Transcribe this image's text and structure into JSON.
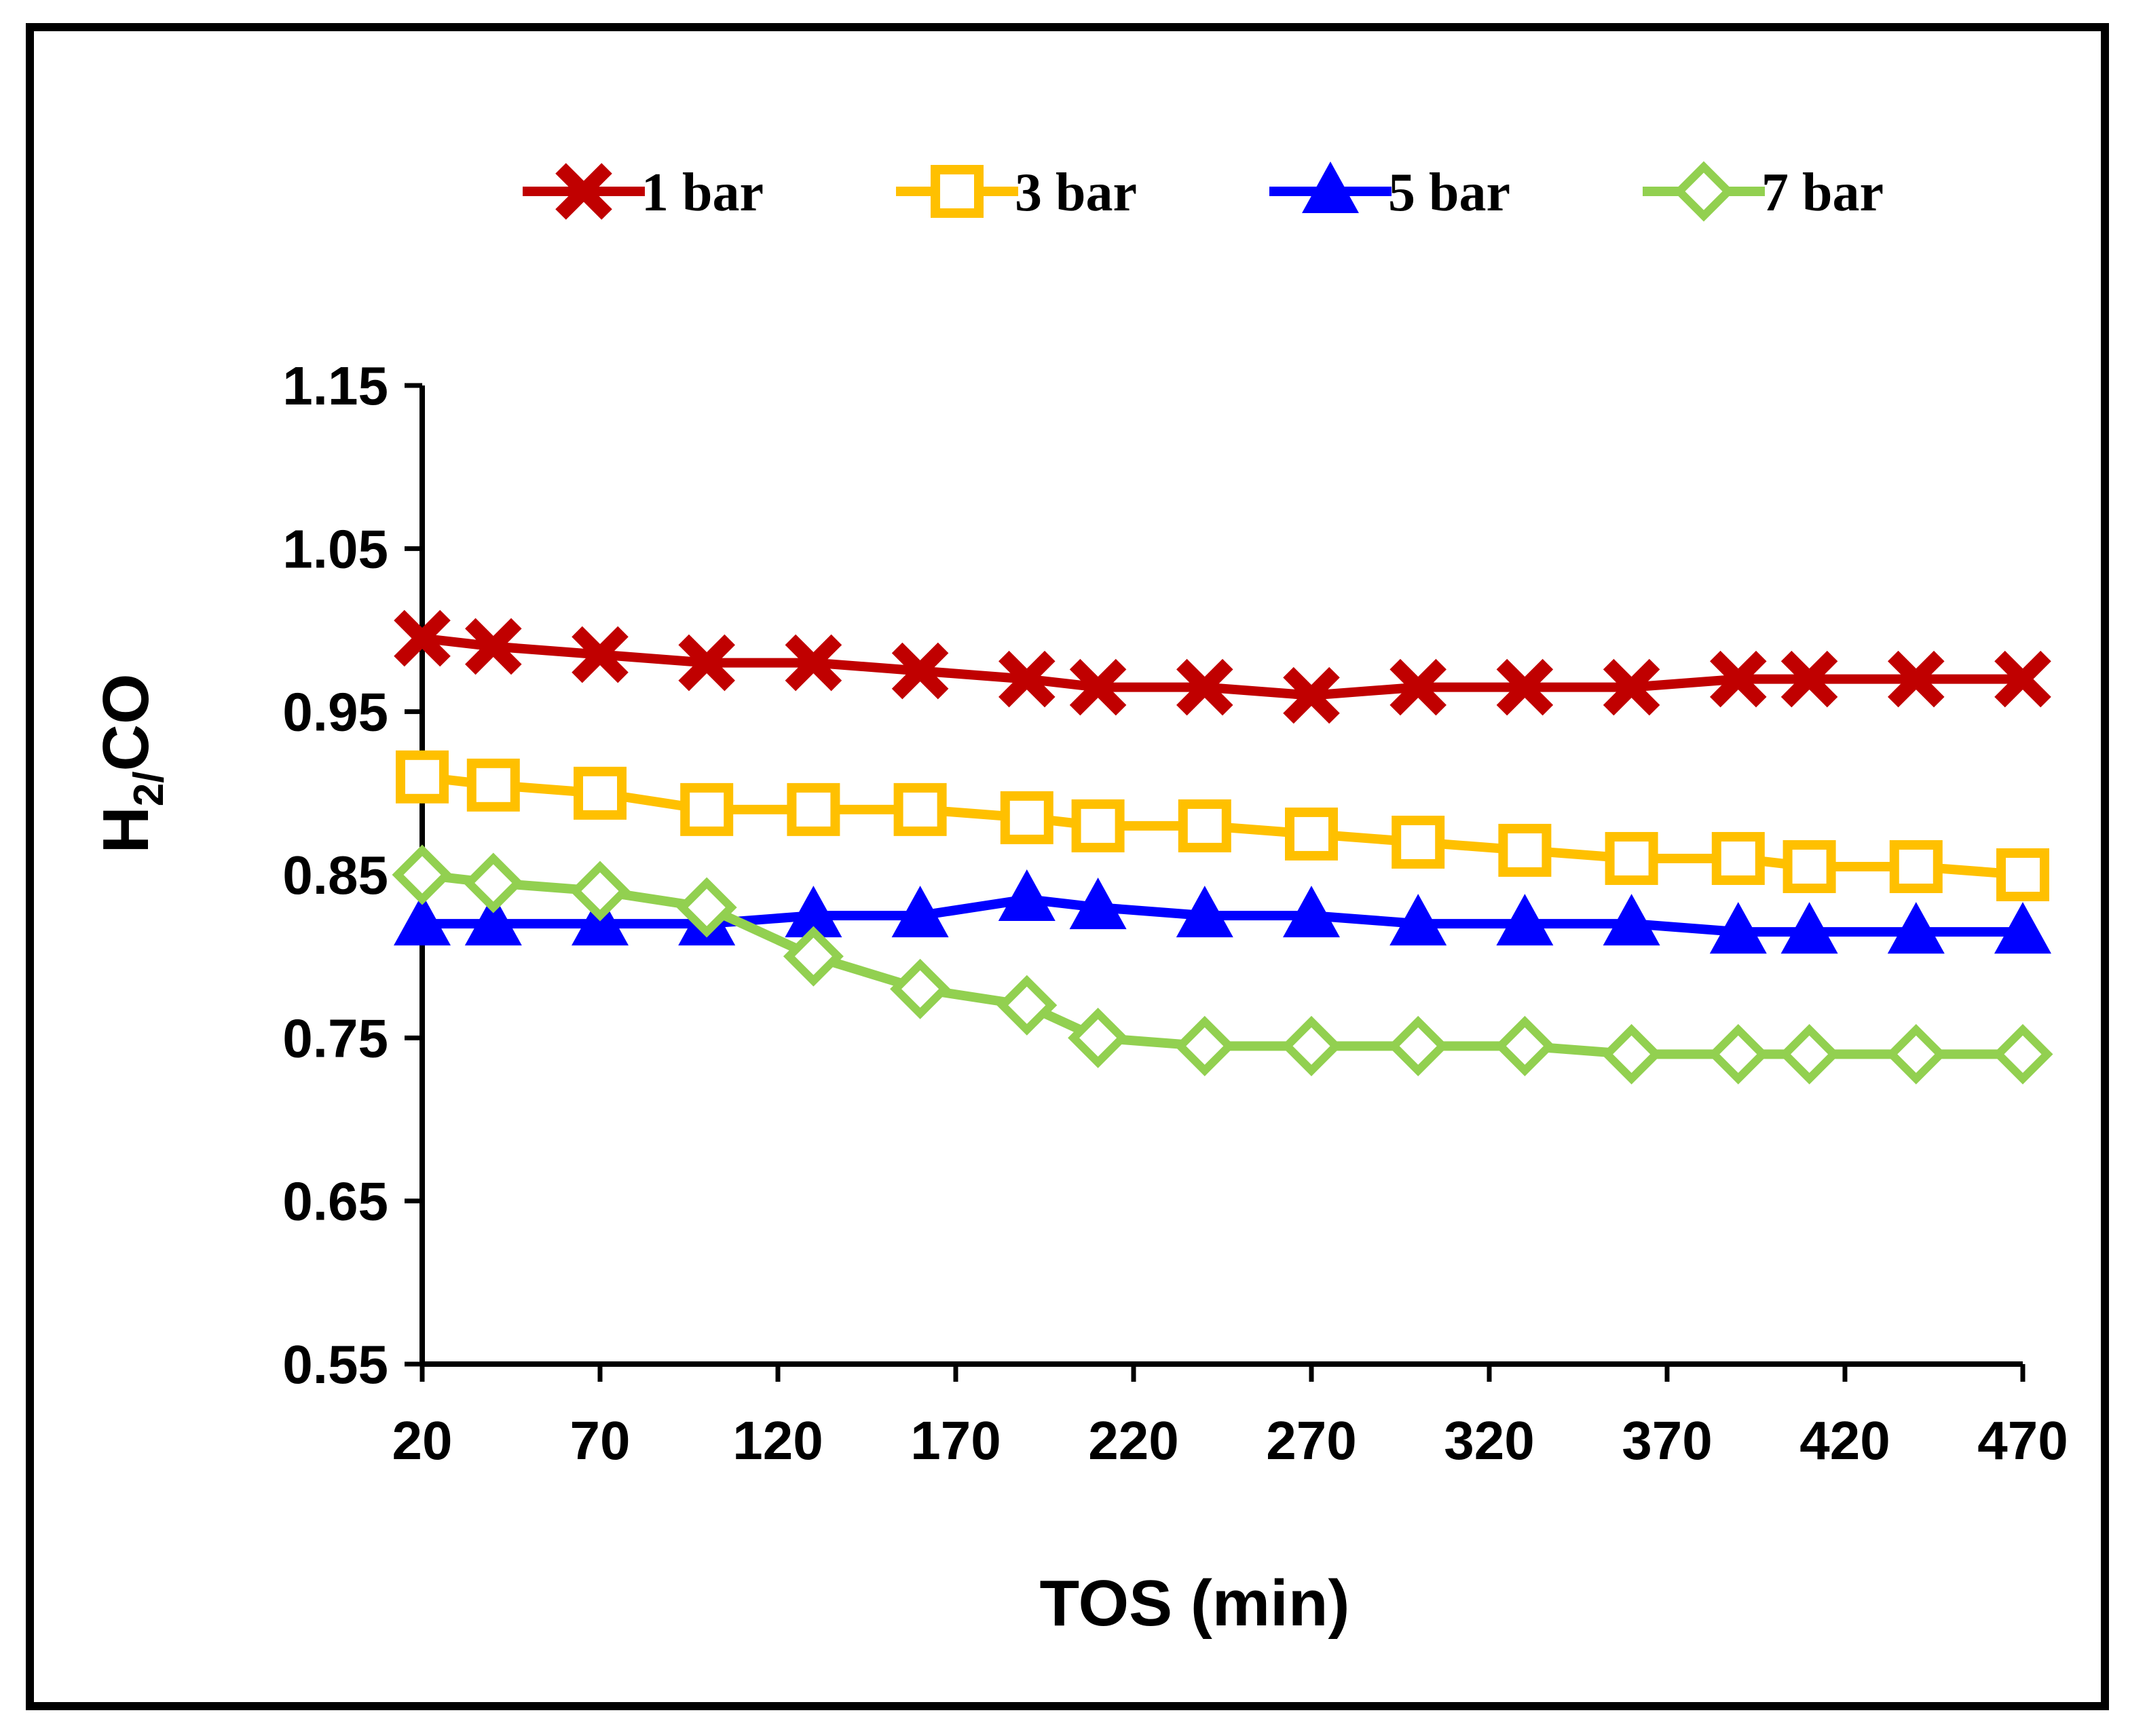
{
  "chart_data": {
    "type": "line",
    "title": "",
    "xlabel": "TOS (min)",
    "ylabel_main": "H",
    "ylabel_sub": "2/",
    "ylabel_rest": "CO",
    "xlim": [
      20,
      470
    ],
    "ylim": [
      0.55,
      1.15
    ],
    "x_ticks": [
      20,
      70,
      120,
      170,
      220,
      270,
      320,
      370,
      420,
      470
    ],
    "x_tick_labels": [
      "20",
      "70",
      "120",
      "170",
      "220",
      "270",
      "320",
      "370",
      "420",
      "470"
    ],
    "y_ticks": [
      0.55,
      0.65,
      0.75,
      0.85,
      0.95,
      1.05,
      1.15
    ],
    "y_tick_labels": [
      "0.55",
      "0.65",
      "0.75",
      "0.85",
      "0.95",
      "1.05",
      "1.15"
    ],
    "legend_position": "top",
    "x": [
      20,
      40,
      70,
      100,
      130,
      160,
      190,
      210,
      240,
      270,
      300,
      330,
      360,
      390,
      410,
      440,
      470
    ],
    "series": [
      {
        "name": "1 bar",
        "color": "#c00000",
        "marker": "x",
        "values": [
          0.995,
          0.99,
          0.985,
          0.98,
          0.98,
          0.975,
          0.97,
          0.965,
          0.965,
          0.96,
          0.965,
          0.965,
          0.965,
          0.97,
          0.97,
          0.97,
          0.97
        ]
      },
      {
        "name": "3 bar",
        "color": "#ffc000",
        "marker": "square-open",
        "values": [
          0.91,
          0.905,
          0.9,
          0.89,
          0.89,
          0.89,
          0.885,
          0.88,
          0.88,
          0.875,
          0.87,
          0.865,
          0.86,
          0.86,
          0.855,
          0.855,
          0.85
        ]
      },
      {
        "name": "5 bar",
        "color": "#0000ff",
        "marker": "triangle",
        "values": [
          0.82,
          0.82,
          0.82,
          0.82,
          0.825,
          0.825,
          0.835,
          0.83,
          0.825,
          0.825,
          0.82,
          0.82,
          0.82,
          0.815,
          0.815,
          0.815,
          0.815
        ]
      },
      {
        "name": "7 bar",
        "color": "#92d050",
        "marker": "diamond-open",
        "values": [
          0.85,
          0.845,
          0.84,
          0.83,
          0.8,
          0.78,
          0.77,
          0.75,
          0.745,
          0.745,
          0.745,
          0.745,
          0.74,
          0.74,
          0.74,
          0.74,
          0.74
        ]
      }
    ]
  }
}
